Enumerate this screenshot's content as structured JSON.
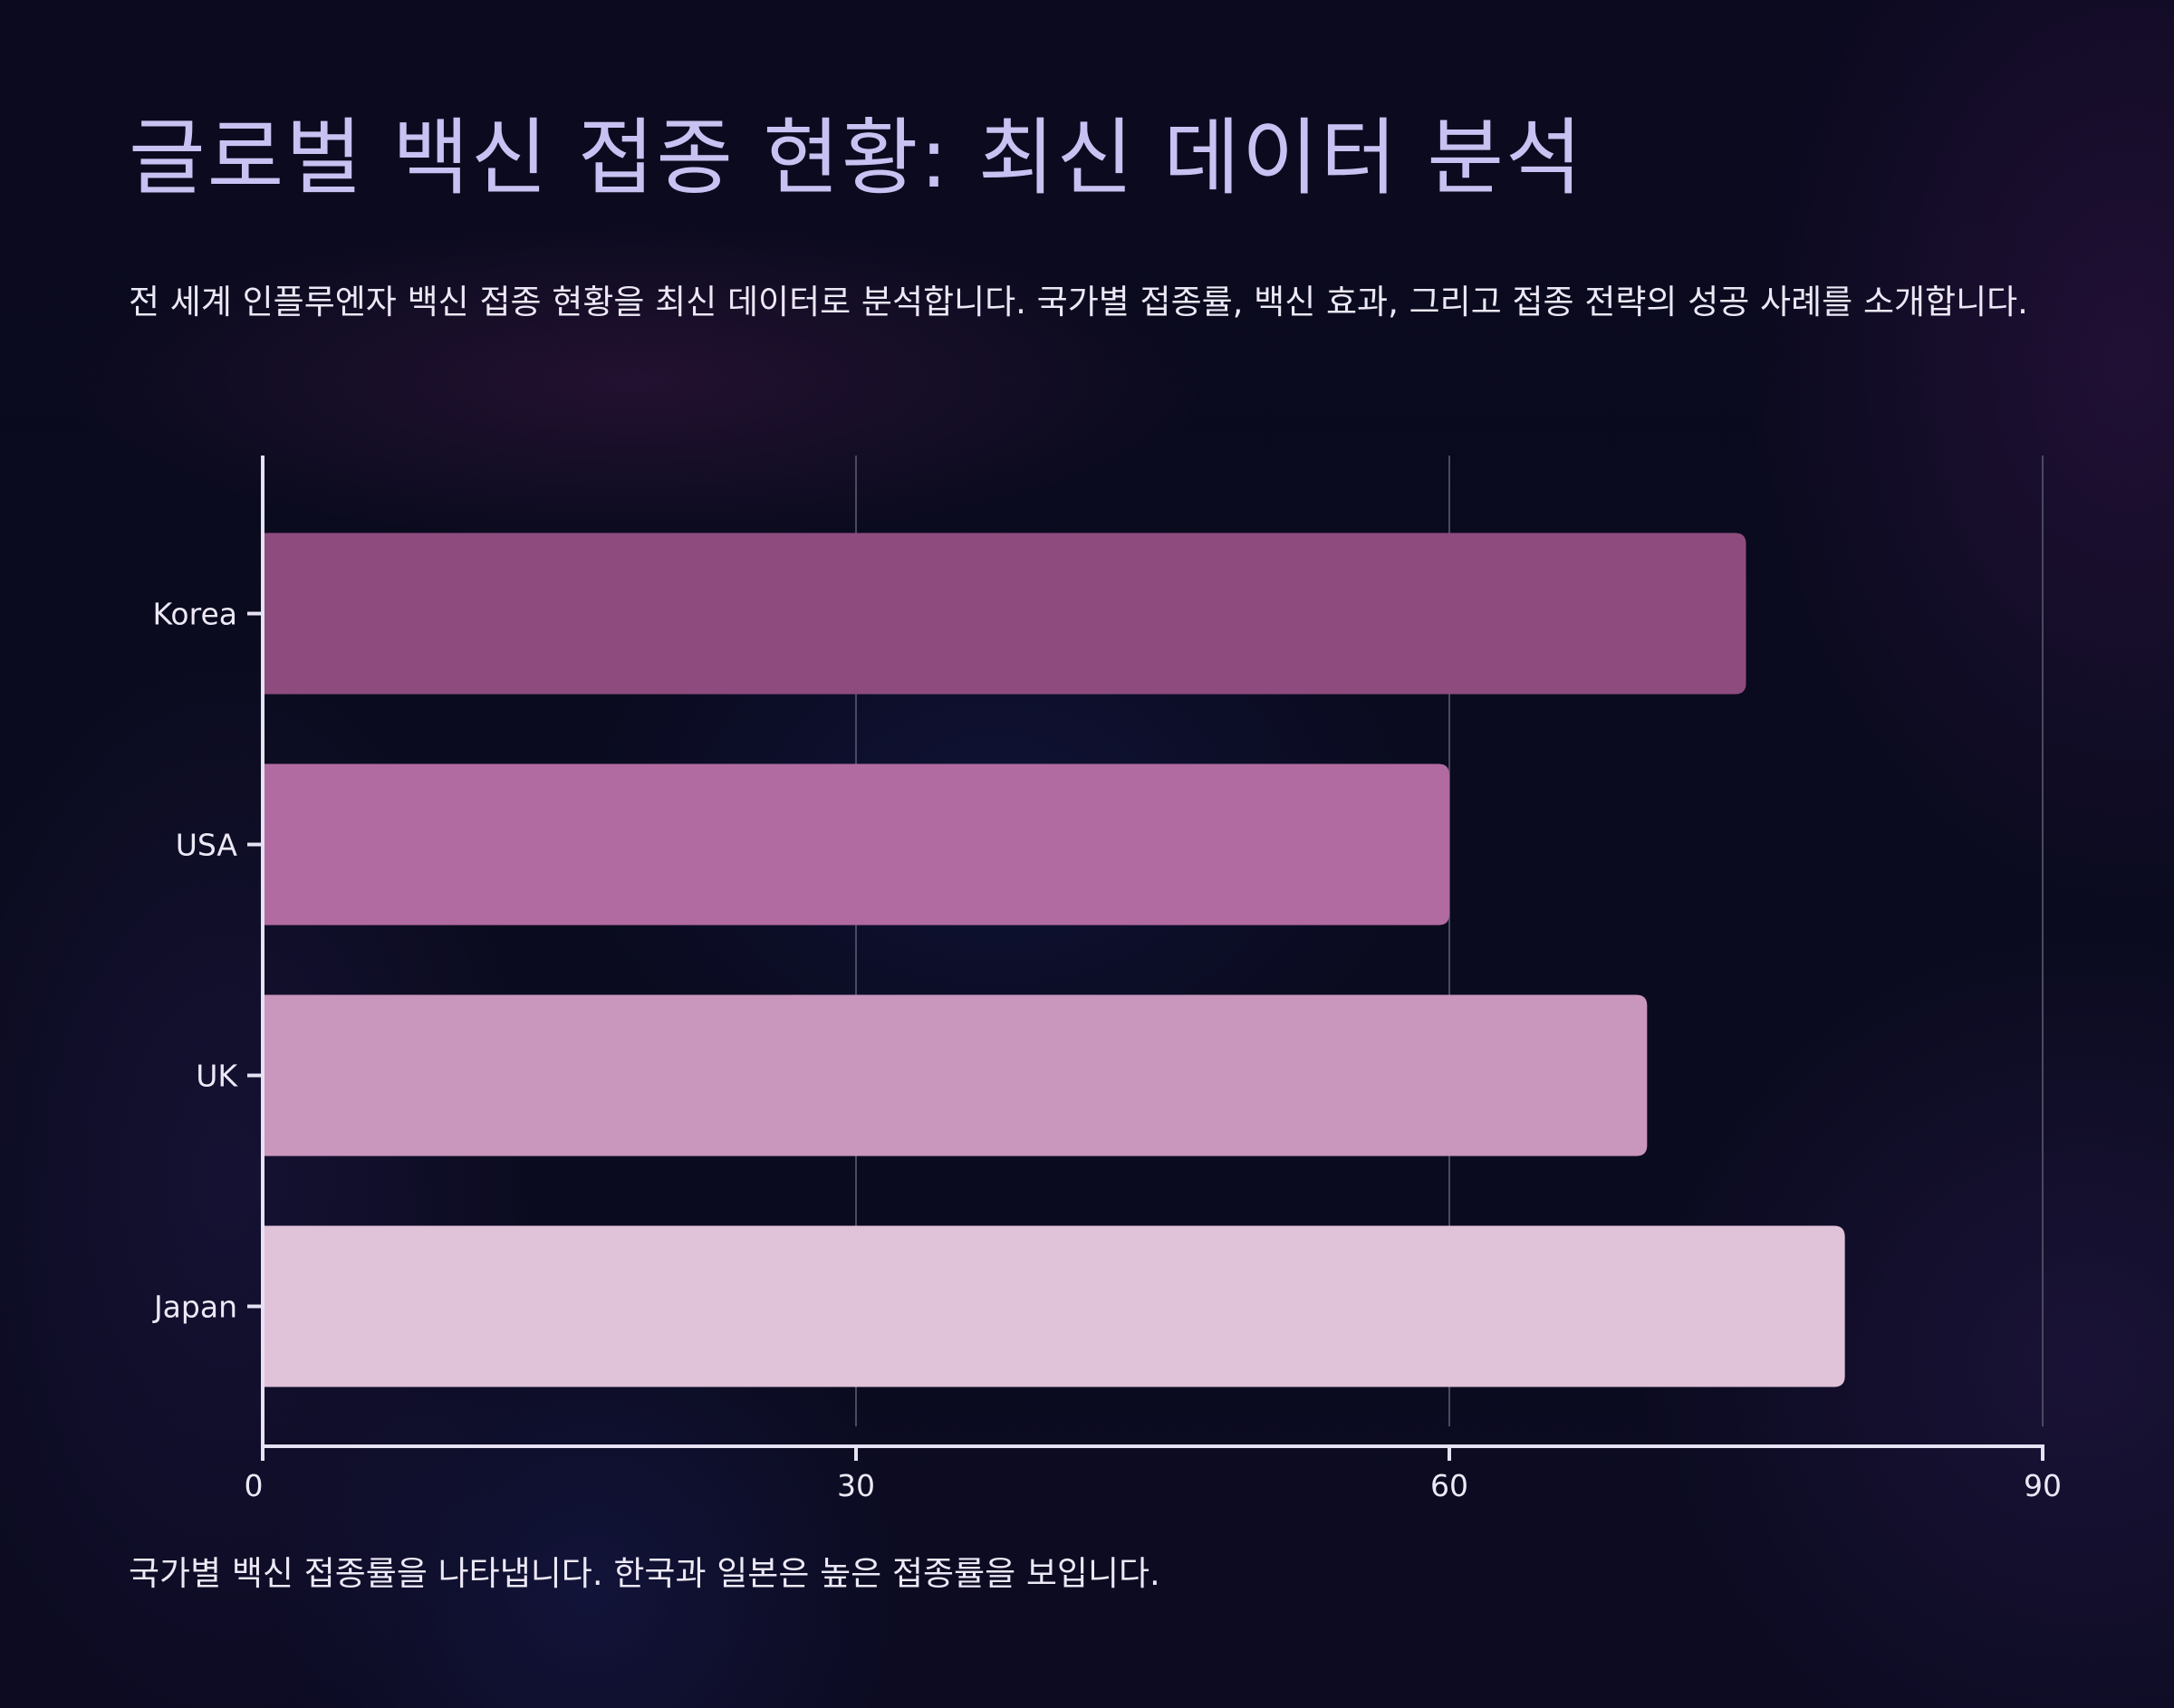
{
  "title": "글로벌 백신 접종 현황: 최신 데이터 분석",
  "subtitle": "전 세계 인플루엔자 백신 접종 현황을 최신 데이터로 분석합니다. 국가별 접종률, 백신 효과, 그리고 접종 전략의 성공 사례를 소개합니다.",
  "caption": "국가별 백신 접종률을 나타냅니다. 한국과 일본은 높은 접종률을 보입니다.",
  "colors": {
    "title": "#c8c2f2",
    "text": "#ece8f6",
    "axis": "#e6e2f4",
    "grid": "#4a4a60"
  },
  "chart_data": {
    "type": "bar",
    "orientation": "horizontal",
    "categories": [
      "Korea",
      "USA",
      "UK",
      "Japan"
    ],
    "values": [
      75,
      60,
      70,
      80
    ],
    "colors": [
      "#8e4c7e",
      "#b26ba1",
      "#c996bd",
      "#e0c2d9"
    ],
    "xlim": [
      0,
      90
    ],
    "xticks": [
      0,
      30,
      60,
      90
    ],
    "grid": true,
    "legend": "none"
  }
}
